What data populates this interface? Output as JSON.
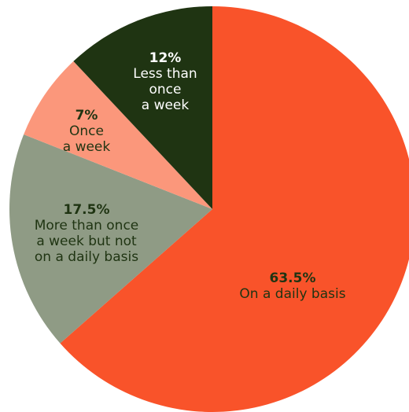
{
  "chart_data": {
    "type": "pie",
    "slices": [
      {
        "label": "On a daily basis",
        "pct_label": "63.5%",
        "value": 63.5,
        "color": "#f9532a",
        "text_color": "#1f3412"
      },
      {
        "label": "More than once\na week but not\non a daily basis",
        "pct_label": "17.5%",
        "value": 17.5,
        "color": "#8f9b85",
        "text_color": "#1f3412"
      },
      {
        "label": "Once\na week",
        "pct_label": "7%",
        "value": 7,
        "color": "#fb977b",
        "text_color": "#1f3412"
      },
      {
        "label": "Less than\nonce\na week",
        "pct_label": "12%",
        "value": 12,
        "color": "#1f3412",
        "text_color": "#ffffff"
      }
    ],
    "start": "12 o'clock",
    "direction": "clockwise"
  }
}
